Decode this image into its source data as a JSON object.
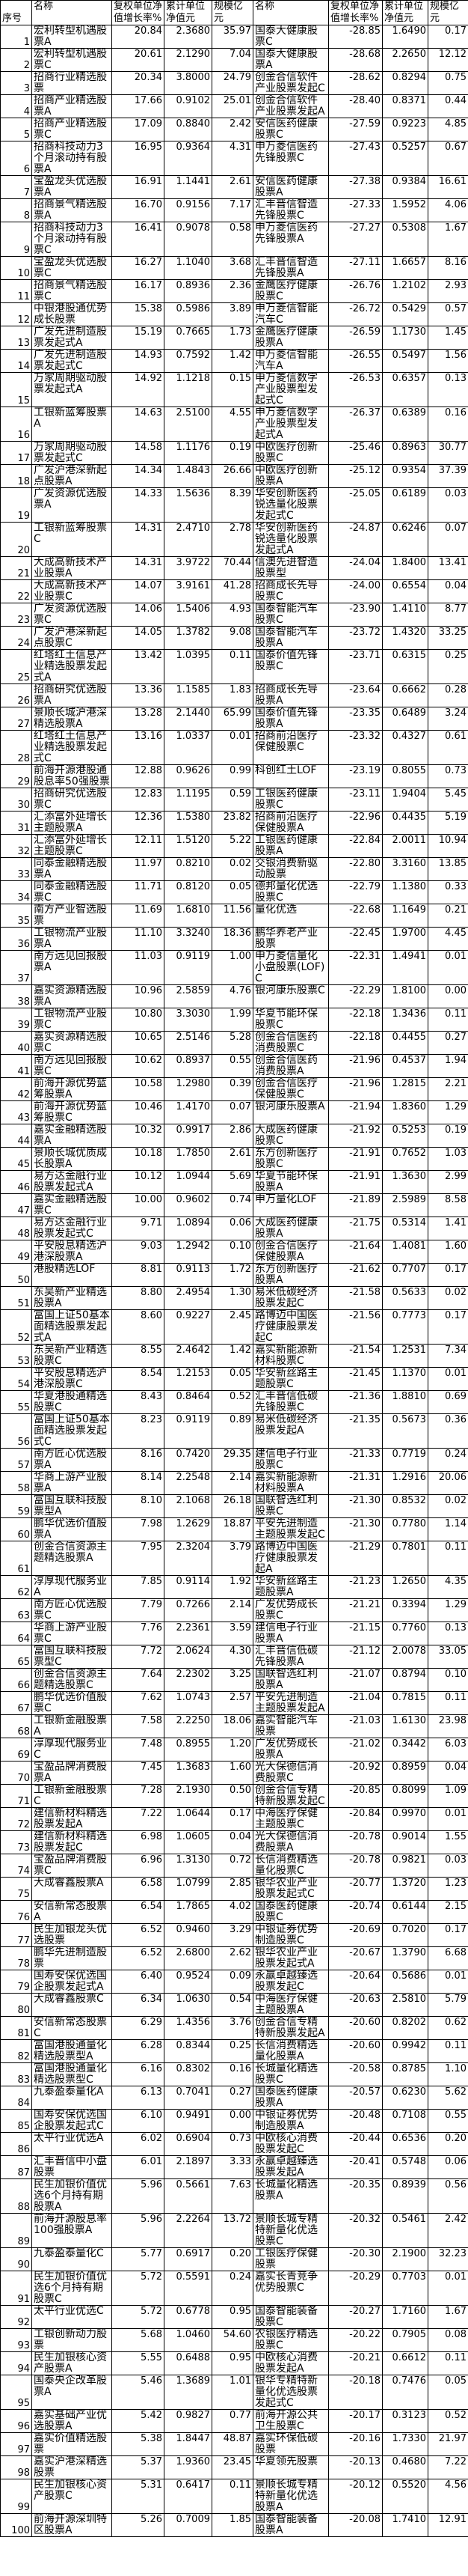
{
  "table": {
    "header": [
      "序号",
      "名称",
      "复权单位净值增长率%",
      "累计单位净值元",
      "规模亿元",
      "名称",
      "复权单位净值增长率%",
      "累计单位净值元",
      "规模亿元"
    ],
    "row_fields": [
      "no",
      "left_name",
      "left_growth",
      "left_nav",
      "left_scale",
      "right_name",
      "right_growth",
      "right_nav",
      "right_scale"
    ],
    "rows": [
      [
        "1",
        "宏利转型机遇股票A",
        "20.84",
        "2.3680",
        "35.97",
        "国泰大健康股票C",
        "-28.85",
        "1.6490",
        "0.17"
      ],
      [
        "2",
        "宏利转型机遇股票C",
        "20.61",
        "2.1290",
        "7.04",
        "国泰大健康股票A",
        "-28.68",
        "2.2650",
        "12.12"
      ],
      [
        "3",
        "招商行业精选股票",
        "20.34",
        "3.8000",
        "24.79",
        "创金合信软件产业股票发起C",
        "-28.62",
        "0.8294",
        "0.75"
      ],
      [
        "4",
        "招商产业精选股票A",
        "17.66",
        "0.9102",
        "25.01",
        "创金合信软件产业股票发起A",
        "-28.40",
        "0.8371",
        "0.44"
      ],
      [
        "5",
        "招商产业精选股票C",
        "17.09",
        "0.8840",
        "2.42",
        "安信医药健康股票C",
        "-27.59",
        "0.9223",
        "4.85"
      ],
      [
        "6",
        "招商科技动力3个月滚动持有股票A",
        "16.95",
        "0.9364",
        "4.31",
        "申万菱信医药先锋股票C",
        "-27.43",
        "0.5257",
        "0.67"
      ],
      [
        "7",
        "宝盈龙头优选股票A",
        "16.91",
        "1.1441",
        "2.61",
        "安信医药健康股票A",
        "-27.38",
        "0.9384",
        "16.61"
      ],
      [
        "8",
        "招商景气精选股票A",
        "16.70",
        "0.9156",
        "7.17",
        "汇丰晋信智造先锋股票C",
        "-27.33",
        "1.5952",
        "4.06"
      ],
      [
        "9",
        "招商科技动力3个月滚动持有股票C",
        "16.41",
        "0.9078",
        "0.58",
        "申万菱信医药先锋股票A",
        "-27.27",
        "0.5308",
        "1.67"
      ],
      [
        "10",
        "宝盈龙头优选股票C",
        "16.27",
        "1.1040",
        "3.68",
        "汇丰晋信智造先锋股票A",
        "-27.11",
        "1.6657",
        "8.16"
      ],
      [
        "11",
        "招商景气精选股票C",
        "16.17",
        "0.8936",
        "2.36",
        "金鹰医疗健康股票C",
        "-26.76",
        "1.2102",
        "2.93"
      ],
      [
        "12",
        "中银港股通优势成长股票",
        "15.38",
        "0.5986",
        "3.89",
        "申万菱信智能汽车C",
        "-26.72",
        "0.5429",
        "0.57"
      ],
      [
        "13",
        "广发先进制造股票发起式A",
        "15.19",
        "0.7665",
        "1.73",
        "金鹰医疗健康股票A",
        "-26.59",
        "1.1730",
        "1.45"
      ],
      [
        "14",
        "广发先进制造股票发起式C",
        "14.93",
        "0.7592",
        "1.42",
        "申万菱信智能汽车A",
        "-26.55",
        "0.5497",
        "1.56"
      ],
      [
        "15",
        "万家周期驱动股票发起式A",
        "14.92",
        "1.1218",
        "0.15",
        "申万菱信数字产业股票型发起式C",
        "-26.53",
        "0.6357",
        "0.13"
      ],
      [
        "16",
        "工银新蓝筹股票A",
        "14.63",
        "2.5100",
        "4.55",
        "申万菱信数字产业股票型发起式A",
        "-26.37",
        "0.6389",
        "0.16"
      ],
      [
        "17",
        "万家周期驱动股票发起式C",
        "14.58",
        "1.1176",
        "0.19",
        "中欧医疗创新股票C",
        "-25.46",
        "0.8963",
        "30.77"
      ],
      [
        "18",
        "广发沪港深新起点股票A",
        "14.34",
        "1.4843",
        "26.66",
        "中欧医疗创新股票A",
        "-25.12",
        "0.9354",
        "37.39"
      ],
      [
        "19",
        "广发资源优选股票A",
        "14.33",
        "1.5636",
        "8.39",
        "华安创新医药锐选量化股票发起式C",
        "-25.05",
        "0.6189",
        "0.03"
      ],
      [
        "20",
        "工银新蓝筹股票C",
        "14.31",
        "2.4710",
        "2.78",
        "华安创新医药锐选量化股票发起式A",
        "-24.87",
        "0.6246",
        "0.07"
      ],
      [
        "21",
        "大成高新技术产业股票A",
        "14.31",
        "3.9722",
        "70.44",
        "信澳先进智造股票型",
        "-24.04",
        "1.8400",
        "13.41"
      ],
      [
        "22",
        "大成高新技术产业股票C",
        "14.07",
        "3.9161",
        "41.28",
        "招商成长先导股票C",
        "-24.00",
        "0.6554",
        "0.04"
      ],
      [
        "23",
        "广发资源优选股票C",
        "14.06",
        "1.5406",
        "4.93",
        "国泰智能汽车股票C",
        "-23.90",
        "1.4110",
        "8.77"
      ],
      [
        "24",
        "广发沪港深新起点股票C",
        "14.05",
        "1.3782",
        "9.08",
        "国泰智能汽车股票A",
        "-23.72",
        "1.4320",
        "33.25"
      ],
      [
        "25",
        "红塔红土信息产业精选股票发起式A",
        "13.42",
        "1.0395",
        "0.11",
        "国泰价值先锋股票C",
        "-23.71",
        "0.6315",
        "0.25"
      ],
      [
        "26",
        "招商研究优选股票A",
        "13.36",
        "1.1585",
        "1.83",
        "招商成长先导股票A",
        "-23.64",
        "0.6662",
        "0.28"
      ],
      [
        "27",
        "景顺长城沪港深精选股票A",
        "13.28",
        "2.1440",
        "65.99",
        "国泰价值先锋股票A",
        "-23.35",
        "0.6489",
        "3.24"
      ],
      [
        "28",
        "红塔红土信息产业精选股票发起式C",
        "13.16",
        "1.0337",
        "0.01",
        "招商前沿医疗保健股票C",
        "-23.32",
        "0.4327",
        "0.61"
      ],
      [
        "29",
        "前海开源港股通股息率50强股票",
        "12.88",
        "0.9626",
        "0.99",
        "科创红土LOF",
        "-23.19",
        "0.8055",
        "0.73"
      ],
      [
        "30",
        "招商研究优选股票C",
        "12.83",
        "1.1195",
        "0.59",
        "工银医药健康股票C",
        "-23.11",
        "1.9404",
        "5.45"
      ],
      [
        "31",
        "汇添富外延增长主题股票A",
        "12.36",
        "1.5380",
        "23.82",
        "招商前沿医疗保健股票A",
        "-22.96",
        "0.4435",
        "5.19"
      ],
      [
        "32",
        "汇添富外延增长主题股票C",
        "12.11",
        "1.5120",
        "5.22",
        "工银医药健康股票A",
        "-22.84",
        "2.0011",
        "10.94"
      ],
      [
        "33",
        "同泰金融精选股票A",
        "11.97",
        "0.8210",
        "0.02",
        "交银消费新驱动股票",
        "-22.80",
        "3.3160",
        "13.85"
      ],
      [
        "34",
        "同泰金融精选股票C",
        "11.71",
        "0.8120",
        "0.05",
        "德邦量化优选股票C",
        "-22.79",
        "1.1380",
        "0.33"
      ],
      [
        "35",
        "南方产业智选股票",
        "11.69",
        "1.6810",
        "11.56",
        "量化优选",
        "-22.68",
        "1.1649",
        "0.21"
      ],
      [
        "36",
        "工银物流产业股票A",
        "11.10",
        "3.3240",
        "18.36",
        "鹏华养老产业股票",
        "-22.45",
        "1.9700",
        "4.45"
      ],
      [
        "37",
        "南方远见回报股票A",
        "11.03",
        "0.9119",
        "1.00",
        "申万菱信量化小盘股票(LOF)C",
        "-22.31",
        "1.4941",
        "0.01"
      ],
      [
        "38",
        "嘉实资源精选股票A",
        "10.96",
        "2.5859",
        "4.76",
        "银河康乐股票C",
        "-22.29",
        "1.8100",
        "0.00"
      ],
      [
        "39",
        "工银物流产业股票C",
        "10.80",
        "3.3030",
        "1.99",
        "华夏节能环保股票C",
        "-22.18",
        "1.3436",
        "0.11"
      ],
      [
        "40",
        "嘉实资源精选股票C",
        "10.65",
        "2.5146",
        "5.28",
        "创金合信医药消费股票C",
        "-22.18",
        "0.4455",
        "0.27"
      ],
      [
        "41",
        "南方远见回报股票C",
        "10.62",
        "0.8937",
        "0.55",
        "创金合信医药消费股票A",
        "-21.96",
        "0.4537",
        "1.94"
      ],
      [
        "42",
        "前海开源优势蓝筹股票A",
        "10.58",
        "1.2980",
        "0.39",
        "创金合信医疗保健股票C",
        "-21.96",
        "1.2815",
        "2.21"
      ],
      [
        "43",
        "前海开源优势蓝筹股票C",
        "10.46",
        "1.4170",
        "0.07",
        "银河康乐股票A",
        "-21.94",
        "1.8360",
        "1.29"
      ],
      [
        "44",
        "嘉实金融精选股票A",
        "10.32",
        "0.9917",
        "2.86",
        "大成医药健康股票C",
        "-21.92",
        "0.5253",
        "0.19"
      ],
      [
        "45",
        "景顺长城优质成长股票A",
        "10.18",
        "1.7850",
        "2.61",
        "东方创新医疗股票C",
        "-21.91",
        "0.7652",
        "1.03"
      ],
      [
        "46",
        "易方达金融行业股票发起式A",
        "10.12",
        "1.0944",
        "5.69",
        "华夏节能环保股票A",
        "-21.91",
        "1.3630",
        "2.99"
      ],
      [
        "47",
        "嘉实金融精选股票C",
        "10.00",
        "0.9602",
        "0.74",
        "申万量化LOF",
        "-21.89",
        "2.5989",
        "8.58"
      ],
      [
        "48",
        "易方达金融行业股票发起式C",
        "9.71",
        "1.0894",
        "0.06",
        "大成医药健康股票A",
        "-21.75",
        "0.5314",
        "1.41"
      ],
      [
        "49",
        "平安股息精选沪港深股票A",
        "9.03",
        "1.2942",
        "0.10",
        "创金合信医疗保健股票A",
        "-21.64",
        "1.4081",
        "1.60"
      ],
      [
        "50",
        "港股精选LOF",
        "8.81",
        "0.9113",
        "1.72",
        "东方创新医疗股票A",
        "-21.62",
        "0.7707",
        "0.17"
      ],
      [
        "51",
        "东吴新产业精选股票A",
        "8.80",
        "2.4954",
        "1.30",
        "易米低碳经济股票发起C",
        "-21.58",
        "0.5633",
        "0.02"
      ],
      [
        "52",
        "富国上证50基本面精选股票发起式A",
        "8.60",
        "0.9227",
        "2.45",
        "路博迈中国医疗健康股票发起C",
        "-21.56",
        "0.7773",
        "0.17"
      ],
      [
        "53",
        "东吴新产业精选股票C",
        "8.55",
        "2.4642",
        "1.42",
        "嘉实新能源新材料股票C",
        "-21.54",
        "1.2531",
        "7.34"
      ],
      [
        "54",
        "平安股息精选沪港深股票C",
        "8.54",
        "1.2153",
        "0.05",
        "华安新丝路主题股票C",
        "-21.45",
        "1.1370",
        "0.01"
      ],
      [
        "55",
        "华夏港股通精选股票C",
        "8.43",
        "0.8464",
        "0.52",
        "汇丰晋信低碳先锋股票C",
        "-21.36",
        "1.8810",
        "0.69"
      ],
      [
        "56",
        "富国上证50基本面精选股票发起式C",
        "8.23",
        "0.9119",
        "0.89",
        "易米低碳经济股票发起A",
        "-21.35",
        "0.5673",
        "0.36"
      ],
      [
        "57",
        "南方匠心优选股票A",
        "8.16",
        "0.7420",
        "29.35",
        "建信电子行业股票C",
        "-21.33",
        "0.7719",
        "0.24"
      ],
      [
        "58",
        "华商上游产业股票A",
        "8.14",
        "2.2548",
        "2.14",
        "嘉实新能源新材料股票A",
        "-21.31",
        "1.2916",
        "20.06"
      ],
      [
        "59",
        "富国互联科技股票型A",
        "8.10",
        "2.1068",
        "26.18",
        "国联智选红利股票C",
        "-21.30",
        "0.8532",
        "0.02"
      ],
      [
        "60",
        "鹏华优选价值股票A",
        "7.98",
        "1.2629",
        "18.87",
        "平安先进制造主题股票发起C",
        "-21.30",
        "0.7780",
        "1.14"
      ],
      [
        "61",
        "创金合信资源主题精选股票A",
        "7.95",
        "2.3204",
        "3.79",
        "路博迈中国医疗健康股票发起A",
        "-21.29",
        "0.7801",
        "0.11"
      ],
      [
        "62",
        "淳厚现代服务业A",
        "7.85",
        "0.9114",
        "1.92",
        "华安新丝路主题股票A",
        "-21.23",
        "1.2650",
        "4.35"
      ],
      [
        "63",
        "南方匠心优选股票C",
        "7.79",
        "0.7266",
        "2.14",
        "广发优势成长股票C",
        "-21.21",
        "0.3394",
        "1.29"
      ],
      [
        "64",
        "华商上游产业股票C",
        "7.76",
        "2.2361",
        "3.59",
        "建信电子行业股票A",
        "-21.15",
        "0.7760",
        "0.13"
      ],
      [
        "65",
        "富国互联科技股票型C",
        "7.72",
        "2.0624",
        "4.30",
        "汇丰晋信低碳先锋股票A",
        "-21.12",
        "2.0078",
        "33.05"
      ],
      [
        "66",
        "创金合信资源主题精选股票C",
        "7.64",
        "2.2302",
        "3.25",
        "国联智选红利股票A",
        "-21.07",
        "0.8794",
        "0.10"
      ],
      [
        "67",
        "鹏华优选价值股票C",
        "7.62",
        "1.0743",
        "2.57",
        "平安先进制造主题股票发起A",
        "-21.04",
        "0.7815",
        "0.11"
      ],
      [
        "68",
        "工银新金融股票A",
        "7.58",
        "2.2250",
        "18.06",
        "嘉实智能汽车股票",
        "-21.03",
        "1.6130",
        "23.98"
      ],
      [
        "69",
        "淳厚现代服务业C",
        "7.48",
        "0.8955",
        "1.20",
        "广发优势成长股票A",
        "-21.02",
        "0.3442",
        "6.03"
      ],
      [
        "70",
        "宝盈品牌消费股票A",
        "7.45",
        "1.3683",
        "1.60",
        "光大保德信消费股票C",
        "-20.92",
        "0.8959",
        "0.04"
      ],
      [
        "71",
        "工银新金融股票C",
        "7.28",
        "2.1930",
        "0.50",
        "创金合信专精特新股票发起C",
        "-20.85",
        "0.8099",
        "1.09"
      ],
      [
        "72",
        "建信新材料精选股票发起A",
        "7.22",
        "1.0644",
        "0.17",
        "中海医疗保健主题股票C",
        "-20.84",
        "0.9970",
        "0.01"
      ],
      [
        "73",
        "建信新材料精选股票发起C",
        "6.98",
        "1.0605",
        "0.04",
        "光大保德信消费股票A",
        "-20.78",
        "0.9014",
        "1.55"
      ],
      [
        "74",
        "宝盈品牌消费股票C",
        "6.96",
        "1.3130",
        "0.72",
        "长信消费精选量化股票C",
        "-20.78",
        "0.9821",
        "0.03"
      ],
      [
        "75",
        "大成睿鑫股票A",
        "6.58",
        "1.0799",
        "2.85",
        "银华农业产业股票发起式C",
        "-20.77",
        "1.3720",
        "1.23"
      ],
      [
        "76",
        "安信新常态股票A",
        "6.54",
        "1.7865",
        "4.02",
        "国泰医药健康股票C",
        "-20.74",
        "0.6144",
        "2.15"
      ],
      [
        "77",
        "民生加银龙头优选股票",
        "6.52",
        "0.9460",
        "3.29",
        "中银证券优势制造股票C",
        "-20.69",
        "0.7020",
        "0.17"
      ],
      [
        "78",
        "鹏华先进制造股票",
        "6.52",
        "2.6800",
        "2.62",
        "银华农业产业股票发起式A",
        "-20.67",
        "1.3790",
        "6.68"
      ],
      [
        "79",
        "国寿安保优选国企股票发起式A",
        "6.40",
        "0.9524",
        "0.09",
        "永赢卓越臻选股票发起C",
        "-20.64",
        "0.5686",
        "0.01"
      ],
      [
        "80",
        "大成睿鑫股票C",
        "6.34",
        "1.0630",
        "0.54",
        "中海医疗保健主题股票A",
        "-20.63",
        "2.5810",
        "5.79"
      ],
      [
        "81",
        "安信新常态股票C",
        "6.29",
        "1.4356",
        "3.76",
        "创金合信专精特新股票发起A",
        "-20.60",
        "0.8202",
        "0.62"
      ],
      [
        "82",
        "富国港股通量化精选股票型A",
        "6.28",
        "0.8344",
        "0.25",
        "长信消费精选量化股票A",
        "-20.60",
        "0.9942",
        "0.11"
      ],
      [
        "83",
        "富国港股通量化精选股票型C",
        "6.16",
        "0.8302",
        "0.16",
        "长城量化精选股票C",
        "-20.58",
        "0.8785",
        "1.10"
      ],
      [
        "84",
        "九泰盈泰量化A",
        "6.13",
        "0.7041",
        "0.27",
        "国泰医药健康股票A",
        "-20.57",
        "0.6230",
        "5.62"
      ],
      [
        "85",
        "国寿安保优选国企股票发起式C",
        "6.10",
        "0.9491",
        "0.00",
        "中银证券优势制造股票A",
        "-20.48",
        "0.7108",
        "0.55"
      ],
      [
        "86",
        "太平行业优选A",
        "6.02",
        "0.6904",
        "0.73",
        "中欧核心消费股票发起C",
        "-20.44",
        "0.6536",
        "0.20"
      ],
      [
        "87",
        "汇丰晋信中小盘股票",
        "6.01",
        "2.1897",
        "3.33",
        "永赢卓越臻选股票发起A",
        "-20.41",
        "0.5748",
        "0.06"
      ],
      [
        "88",
        "民生加银价值优选6个月持有期股票A",
        "5.96",
        "0.5661",
        "7.63",
        "长城量化精选股票A",
        "-20.35",
        "0.8939",
        "0.56"
      ],
      [
        "89",
        "前海开源股息率100强股票A",
        "5.96",
        "2.2264",
        "13.72",
        "景顺长城专精特新量化优选股票C",
        "-20.32",
        "0.5461",
        "2.42"
      ],
      [
        "90",
        "九泰盈泰量化C",
        "5.77",
        "0.6917",
        "0.20",
        "工银医疗保健股票",
        "-20.30",
        "2.1900",
        "32.23"
      ],
      [
        "91",
        "民生加银价值优选6个月持有期股票C",
        "5.72",
        "0.5591",
        "0.24",
        "嘉实长青竞争优势股票C",
        "-20.29",
        "0.7703",
        "0.01"
      ],
      [
        "92",
        "太平行业优选C",
        "5.72",
        "0.6778",
        "0.95",
        "国泰智能装备股票C",
        "-20.27",
        "1.7160",
        "1.67"
      ],
      [
        "93",
        "工银创新动力股票",
        "5.68",
        "1.0460",
        "54.60",
        "农银医疗精选股票C",
        "-20.22",
        "0.7905",
        "0.08"
      ],
      [
        "94",
        "民生加银核心资产股票A",
        "5.55",
        "0.6488",
        "0.95",
        "中欧核心消费股票发起A",
        "-20.21",
        "0.6612",
        "0.11"
      ],
      [
        "95",
        "国泰央企改革股票A",
        "5.46",
        "1.3689",
        "1.01",
        "银华专精特新量化优选股票发起式C",
        "-20.18",
        "0.7476",
        "0.05"
      ],
      [
        "96",
        "嘉实基础产业优选股票A",
        "5.42",
        "0.9827",
        "0.77",
        "前海开源公共卫生股票C",
        "-20.17",
        "0.3123",
        "0.52"
      ],
      [
        "97",
        "嘉实价值精选股票",
        "5.38",
        "1.8447",
        "48.87",
        "嘉实环保低碳股票",
        "-20.16",
        "1.7330",
        "21.97"
      ],
      [
        "98",
        "嘉实沪港深精选股票",
        "5.37",
        "1.9360",
        "23.45",
        "华夏领先股票",
        "-20.13",
        "0.4680",
        "7.22"
      ],
      [
        "99",
        "民生加银核心资产股票C",
        "5.31",
        "0.6417",
        "0.11",
        "景顺长城专精特新量化优选股票A",
        "-20.12",
        "0.5520",
        "4.56"
      ],
      [
        "100",
        "前海开源深圳特区股票A",
        "5.26",
        "0.7009",
        "1.85",
        "国泰智能装备股票A",
        "-20.08",
        "1.7410",
        "12.91"
      ]
    ]
  }
}
